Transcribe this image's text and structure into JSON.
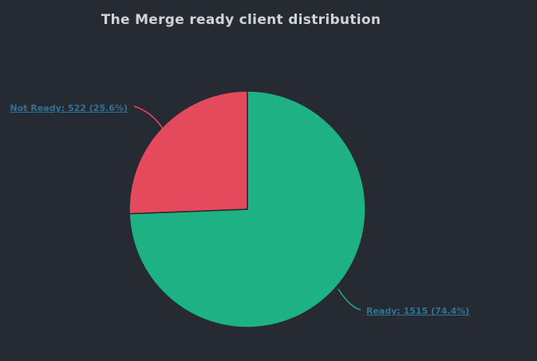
{
  "title": "The Merge ready client distribution",
  "colors": {
    "background": "#262A33",
    "title_text": "#D2D3D8",
    "label_link": "#2F7396",
    "ready_green": "#1DB183",
    "not_ready_red": "#E5495C"
  },
  "chart_data": {
    "type": "pie",
    "title": "The Merge ready client distribution",
    "direction": "clockwise",
    "start_angle_deg": 0,
    "grid": false,
    "legend_position": "none",
    "slices": [
      {
        "label": "Ready",
        "value": 1515,
        "percent": 74.4,
        "color": "#1DB183",
        "display": "Ready: 1515 (74.4%)"
      },
      {
        "label": "Not Ready",
        "value": 522,
        "percent": 25.6,
        "color": "#E5495C",
        "display": "Not Ready: 522 (25.6%)"
      }
    ]
  }
}
